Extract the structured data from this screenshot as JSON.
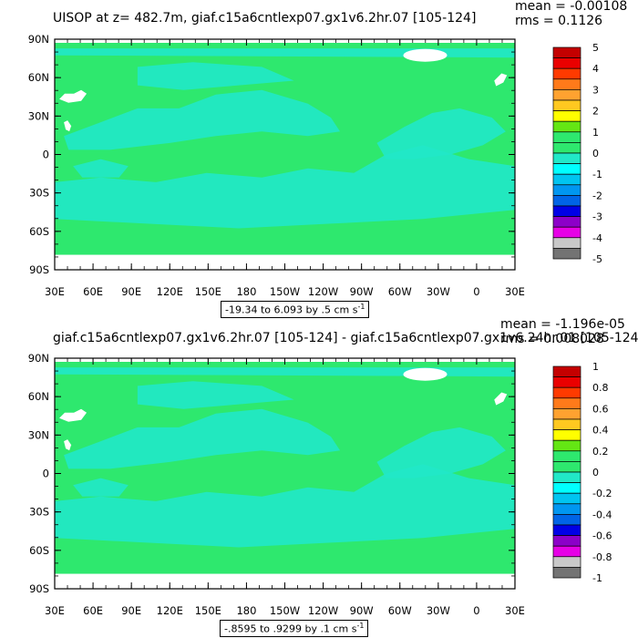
{
  "panels": [
    {
      "title": "UISOP at z= 482.7m, giaf.c15a6cntlexp07.gx1v6.2hr.07 [105-124]",
      "mean": "mean = -0.00108",
      "rms": "rms = 0.1126",
      "range_label": "-19.34 to 6.093 by .5 cm s",
      "range_sup": "-1",
      "colorbar_labels": [
        "5",
        "4",
        "3",
        "2",
        "1",
        "0",
        "-1",
        "-2",
        "-3",
        "-4",
        "-5"
      ]
    },
    {
      "title": "giaf.c15a6cntlexp07.gx1v6.2hr.07 [105-124] - giaf.c15a6cntlexp07.gx1v6.24hr.01 [105-124]",
      "mean": "mean = -1.196e-05",
      "rms": "rms = 0.008028",
      "range_label": "-.8595 to .9299 by .1 cm s",
      "range_sup": "-1",
      "colorbar_labels": [
        "1",
        "0.8",
        "0.6",
        "0.4",
        "0.2",
        "0",
        "-0.2",
        "-0.4",
        "-0.6",
        "-0.8",
        "-1"
      ]
    }
  ],
  "lat_labels": [
    "90N",
    "60N",
    "30N",
    "0",
    "30S",
    "60S",
    "90S"
  ],
  "lon_labels": [
    "30E",
    "60E",
    "90E",
    "120E",
    "150E",
    "180",
    "150W",
    "120W",
    "90W",
    "60W",
    "30W",
    "0",
    "30E"
  ],
  "colors": {
    "background_green": "#2ee86e",
    "cyan_shade": "#21e8c8",
    "land_mask": "#ffffff",
    "colorbar": [
      "#c40000",
      "#ea0000",
      "#ff3a00",
      "#ff7a1a",
      "#ffa230",
      "#ffc820",
      "#ffff00",
      "#64e614",
      "#2ee86e",
      "#2ee86e",
      "#21e8c8",
      "#00ffff",
      "#00c4f0",
      "#0096f0",
      "#0064e6",
      "#0000e6",
      "#8c00c8",
      "#e600e6",
      "#c8c8c8",
      "#737373"
    ]
  }
}
